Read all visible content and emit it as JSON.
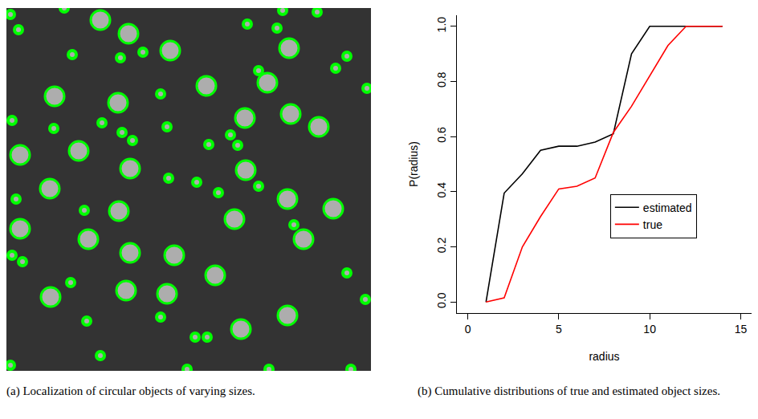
{
  "chart_data": [
    {
      "type": "detection",
      "caption": "(a) Localization of circular objects of varying sizes.",
      "tick_labels": false,
      "xlim": [
        8,
        462
      ],
      "ylim": [
        462,
        10
      ],
      "color": "#00ff00",
      "circles": {
        "x": [
          125,
          160,
          212,
          360,
          68,
          147,
          257,
          333,
          305,
          362,
          397,
          25,
          98,
          162,
          306,
          62,
          358,
          148,
          292,
          415,
          25,
          110,
          378,
          162,
          217,
          268,
          63,
          157,
          208,
          358,
          300,
          80,
          308,
          90,
          150,
          178,
          345,
          13,
          23,
          418,
          432,
          200,
          322,
          457,
          127,
          67,
          15,
          208,
          152,
          165,
          287,
          296,
          260,
          210,
          245,
          272,
          322,
          20,
          105,
          366,
          15,
          28,
          88,
          432,
          455,
          108,
          243,
          258,
          125,
          233,
          335,
          437,
          13,
          395,
          352,
          200
        ],
        "y": [
          25,
          42,
          63,
          60,
          120,
          128,
          107,
          103,
          147,
          142,
          158,
          193,
          188,
          210,
          212,
          235,
          248,
          263,
          273,
          260,
          285,
          298,
          298,
          315,
          318,
          343,
          370,
          362,
          366,
          393,
          410,
          10,
          30,
          68,
          72,
          65,
          35,
          18,
          37,
          85,
          70,
          117,
          88,
          110,
          153,
          160,
          150,
          158,
          165,
          175,
          168,
          181,
          180,
          222,
          227,
          240,
          232,
          248,
          262,
          280,
          318,
          326,
          352,
          340,
          373,
          400,
          420,
          420,
          443,
          460,
          460,
          460,
          455,
          15,
          13,
          395
        ],
        "r": [
          12,
          12,
          12,
          12,
          12,
          12,
          12,
          12,
          12,
          12,
          12,
          12,
          12,
          12,
          12,
          12,
          12,
          12,
          12,
          12,
          12,
          12,
          12,
          12,
          12,
          12,
          12,
          12,
          12,
          12,
          12,
          5,
          5,
          5,
          5,
          5,
          5,
          5,
          5,
          5,
          5,
          5,
          5,
          5,
          5,
          5,
          5,
          5,
          5,
          5,
          5,
          5,
          5,
          5,
          5,
          5,
          5,
          5,
          5,
          5,
          5,
          5,
          5,
          5,
          5,
          5,
          5,
          5,
          5,
          5,
          5,
          5,
          5,
          5,
          5,
          5
        ]
      }
    },
    {
      "type": "line",
      "caption": "(b) Cumulative distributions of true and estimated object sizes.",
      "x_label": "radius",
      "y_label": "P(radius)",
      "x": [
        1,
        2,
        3,
        4,
        5,
        6,
        7,
        8,
        9,
        10,
        11,
        12,
        13,
        14
      ],
      "series": [
        {
          "name": "estimated",
          "color": "#000000",
          "values": [
            0,
            0.395,
            0.465,
            0.55,
            0.565,
            0.565,
            0.58,
            0.61,
            0.9,
            1.0,
            1.0,
            1.0,
            1.0,
            1.0
          ]
        },
        {
          "name": "true",
          "color": "#ff0000",
          "values": [
            0,
            0.015,
            0.2,
            0.31,
            0.41,
            0.42,
            0.45,
            0.615,
            0.71,
            0.82,
            0.93,
            1.0,
            1.0,
            1.0
          ]
        }
      ],
      "xlim": [
        -0.6,
        15.6
      ],
      "xticks": [
        0,
        5,
        10,
        15
      ],
      "ylim": [
        -0.04,
        1.04
      ],
      "yticks": [
        {
          "value": 0,
          "label": "0.0"
        },
        0.2,
        0.4,
        0.6,
        0.8,
        {
          "value": 1,
          "label": "1.0"
        }
      ],
      "legend": "right"
    }
  ]
}
